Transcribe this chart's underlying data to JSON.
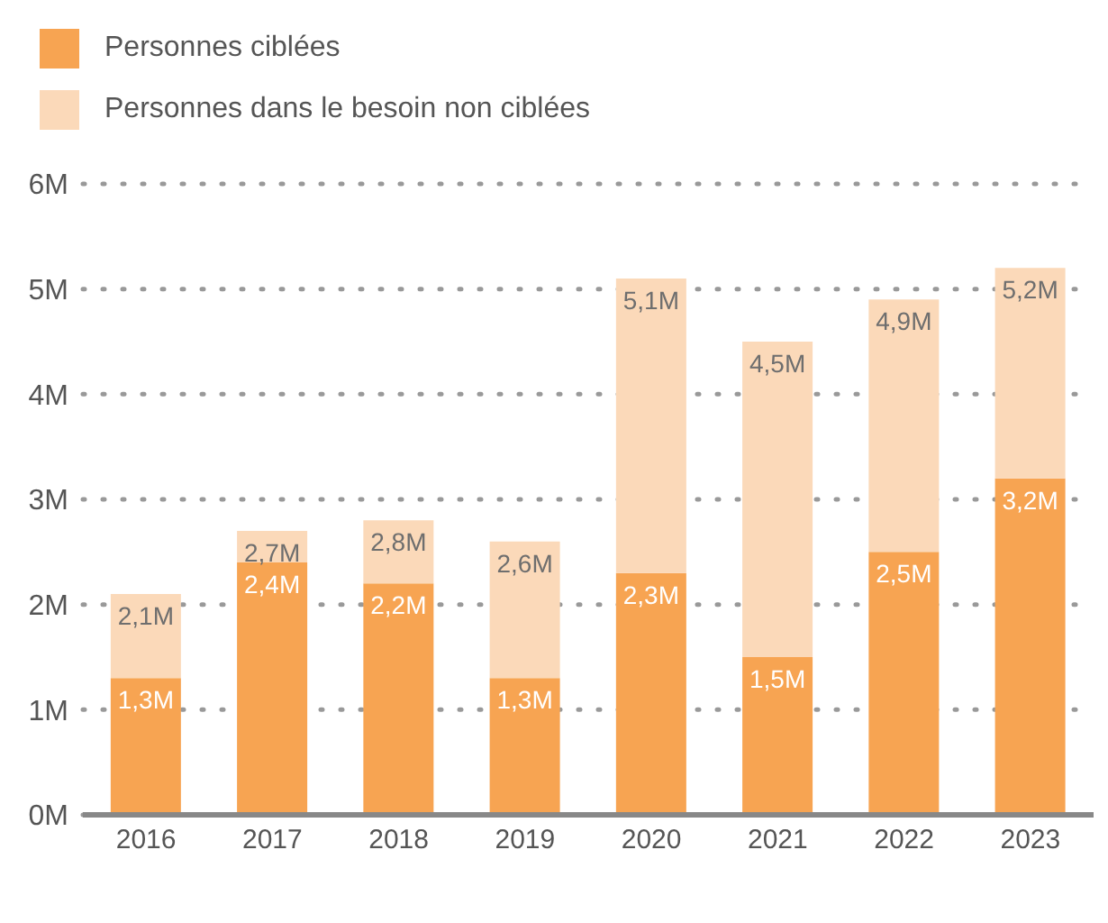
{
  "chart_data": {
    "type": "bar",
    "stacked": true,
    "categories": [
      "2016",
      "2017",
      "2018",
      "2019",
      "2020",
      "2021",
      "2022",
      "2023"
    ],
    "series": [
      {
        "name": "Personnes ciblées",
        "color": "#f7a452",
        "values": [
          1.3,
          2.4,
          2.2,
          1.3,
          2.3,
          1.5,
          2.5,
          3.2
        ],
        "value_labels": [
          "1,3M",
          "2,4M",
          "2,2M",
          "1,3M",
          "2,3M",
          "1,5M",
          "2,5M",
          "3,2M"
        ]
      },
      {
        "name": "Personnes dans le besoin non ciblées",
        "color": "#fbd9b9",
        "values": [
          0.8,
          0.3,
          0.6,
          1.3,
          2.8,
          3.0,
          2.4,
          2.0
        ]
      }
    ],
    "totals": [
      "2,1M",
      "2,7M",
      "2,8M",
      "2,6M",
      "5,1M",
      "4,5M",
      "4,9M",
      "5,2M"
    ],
    "ylim": [
      0,
      6
    ],
    "yticks": [
      {
        "value": 0,
        "label": "0M"
      },
      {
        "value": 1,
        "label": "1M"
      },
      {
        "value": 2,
        "label": "2M"
      },
      {
        "value": 3,
        "label": "3M"
      },
      {
        "value": 4,
        "label": "4M"
      },
      {
        "value": 5,
        "label": "5M"
      },
      {
        "value": 6,
        "label": "6M"
      }
    ],
    "grid": "y",
    "legend": "top left"
  }
}
